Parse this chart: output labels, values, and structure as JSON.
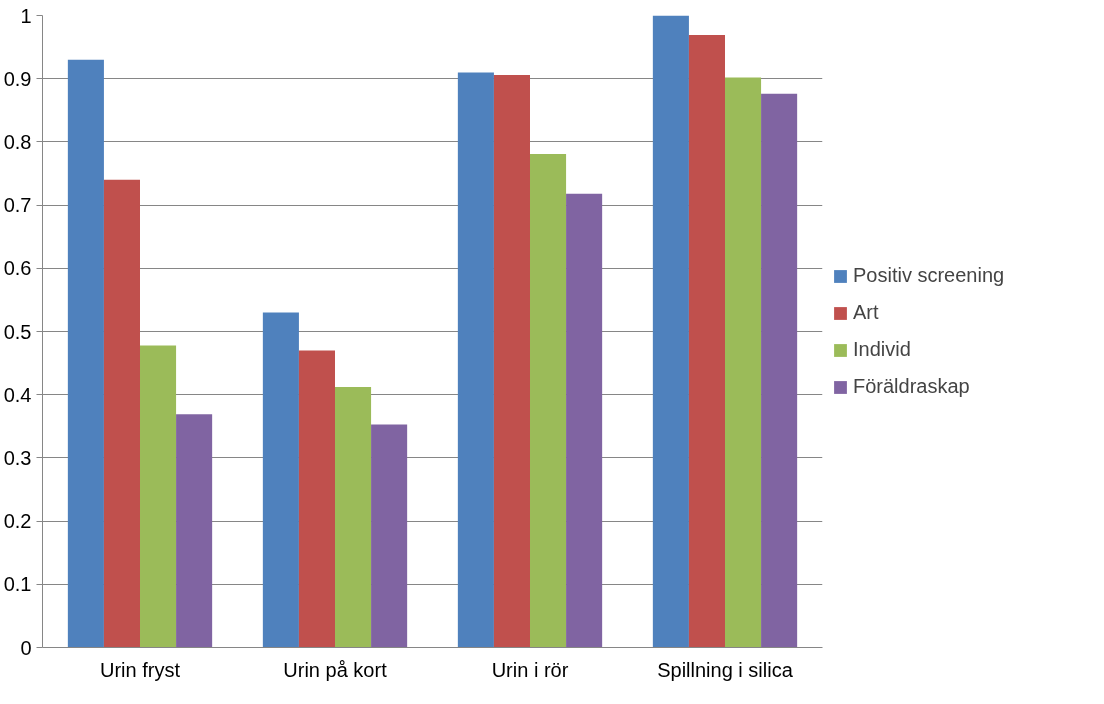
{
  "chart_data": {
    "type": "bar",
    "categories": [
      "Urin fryst",
      "Urin på kort",
      "Urin i rör",
      "Spillning i silica"
    ],
    "series": [
      {
        "name": "Positiv screening",
        "color": "#4f81bd",
        "values": [
          0.93,
          0.53,
          0.91,
          1.0
        ]
      },
      {
        "name": "Art",
        "color": "#c0504d",
        "values": [
          0.74,
          0.47,
          0.906,
          0.969
        ]
      },
      {
        "name": "Individ",
        "color": "#9bbb59",
        "values": [
          0.478,
          0.412,
          0.781,
          0.902
        ]
      },
      {
        "name": "Föräldraskap",
        "color": "#8064a2",
        "values": [
          0.369,
          0.353,
          0.718,
          0.876
        ]
      }
    ],
    "ylim": [
      0,
      1
    ],
    "yticks": [
      0,
      0.1,
      0.2,
      0.3,
      0.4,
      0.5,
      0.6,
      0.7,
      0.8,
      0.9,
      1
    ],
    "grid": "y",
    "legend": "right"
  }
}
